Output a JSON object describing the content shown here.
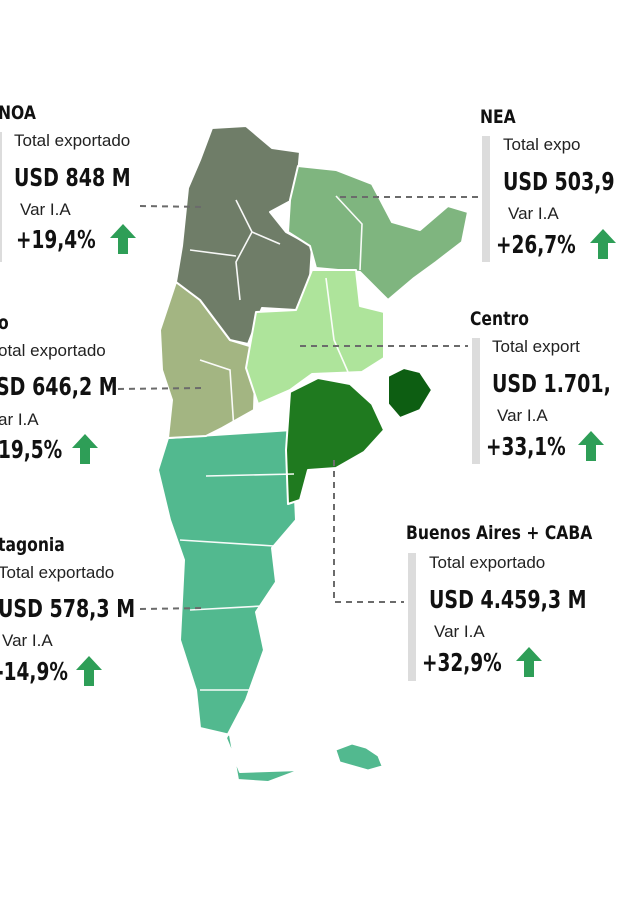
{
  "colors": {
    "noa": "#6f7d68",
    "nea": "#7fb57f",
    "cuyo": "#a3b582",
    "centro": "#aee49b",
    "buenos_aires": "#1f7a1f",
    "caba": "#0d5e12",
    "patagonia": "#52b98f",
    "arrow": "#2e9e57",
    "leader": "#6b6b6b"
  },
  "regions": [
    {
      "key": "noa",
      "name": "NOA",
      "label_total": "Total exportado",
      "value": "USD 848 M",
      "label_var": "Var I.A",
      "var": "+19,4%",
      "arrow_icon": "arrow-up-icon"
    },
    {
      "key": "nea",
      "name": "NEA",
      "label_total": "Total expo",
      "value": "USD 503,9",
      "label_var": "Var I.A",
      "var": "+26,7%",
      "arrow_icon": "arrow-up-icon"
    },
    {
      "key": "cuyo",
      "name": "o",
      "label_total": "otal exportado",
      "value": "SD  646,2 M",
      "label_var": "ar I.A",
      "var": "19,5%",
      "arrow_icon": "arrow-up-icon"
    },
    {
      "key": "centro",
      "name": "Centro",
      "label_total": "Total export",
      "value": "USD 1.701,",
      "label_var": "Var I.A",
      "var": "+33,1%",
      "arrow_icon": "arrow-up-icon"
    },
    {
      "key": "patagonia",
      "name": "tagonia",
      "label_total": "Total exportado",
      "value": "USD 578,3 M",
      "label_var": "Var I.A",
      "var": "-14,9%",
      "arrow_icon": "arrow-up-icon"
    },
    {
      "key": "buenos_aires",
      "name": "Buenos Aires + CABA",
      "label_total": "Total exportado",
      "value": "USD 4.459,3 M",
      "label_var": "Var I.A",
      "var": "+32,9%",
      "arrow_icon": "arrow-up-icon"
    }
  ]
}
